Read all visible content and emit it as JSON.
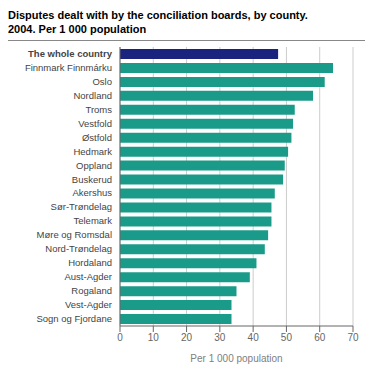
{
  "chart_data": {
    "type": "bar",
    "orientation": "horizontal",
    "title": "Disputes dealt with by the conciliation boards, by county.",
    "subtitle": "2004. Per 1 000 population",
    "xlabel": "Per 1 000 population",
    "categories": [
      "The whole country",
      "Finnmark Finnmárku",
      "Oslo",
      "Nordland",
      "Troms",
      "Vestfold",
      "Østfold",
      "Hedmark",
      "Oppland",
      "Buskerud",
      "Akershus",
      "Sør-Trøndelag",
      "Telemark",
      "Møre og Romsdal",
      "Nord-Trøndelag",
      "Hordaland",
      "Aust-Agder",
      "Rogaland",
      "Vest-Agder",
      "Sogn og Fjordane"
    ],
    "values": [
      47.5,
      64.0,
      61.5,
      58.0,
      52.5,
      52.0,
      51.5,
      50.5,
      49.5,
      49.0,
      46.5,
      45.5,
      45.5,
      44.5,
      43.5,
      41.0,
      39.0,
      35.0,
      33.5,
      33.5
    ],
    "colors": [
      "#1a237e",
      "#1a9b8a",
      "#1a9b8a",
      "#1a9b8a",
      "#1a9b8a",
      "#1a9b8a",
      "#1a9b8a",
      "#1a9b8a",
      "#1a9b8a",
      "#1a9b8a",
      "#1a9b8a",
      "#1a9b8a",
      "#1a9b8a",
      "#1a9b8a",
      "#1a9b8a",
      "#1a9b8a",
      "#1a9b8a",
      "#1a9b8a",
      "#1a9b8a",
      "#1a9b8a"
    ],
    "xlim": [
      0,
      70
    ],
    "xticks": [
      0,
      10,
      20,
      30,
      40,
      50,
      60,
      70
    ],
    "grid": true
  }
}
